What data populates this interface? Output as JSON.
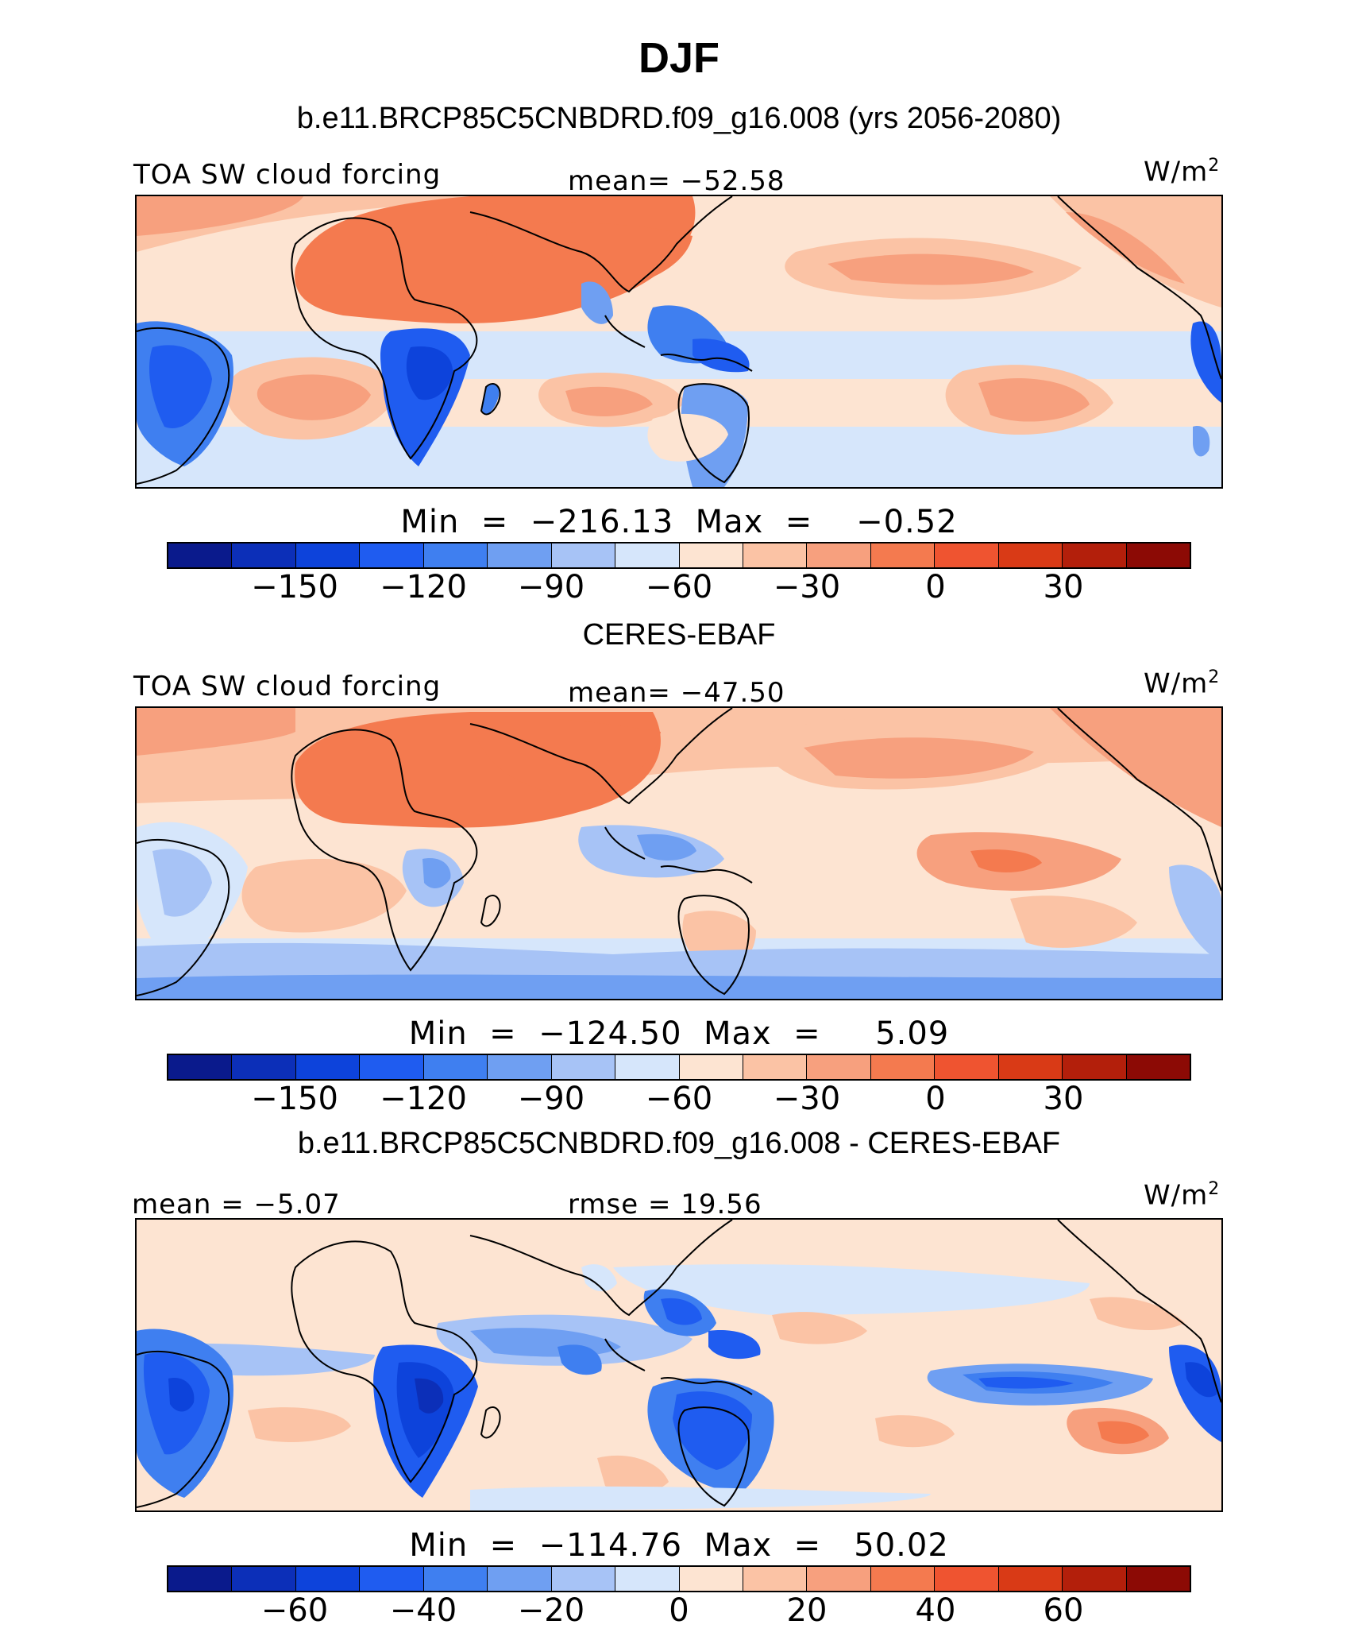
{
  "title": "DJF",
  "units": "W/m",
  "units_sup": "2",
  "colorbar_colors": [
    "#0a1a8c",
    "#0c2fb8",
    "#0d43db",
    "#1f5cf0",
    "#3f7ff0",
    "#6f9ff2",
    "#a7c3f6",
    "#d6e6fb",
    "#fde4d2",
    "#fbc3a5",
    "#f7a07e",
    "#f47a4f",
    "#ef5430",
    "#d93a16",
    "#b31f0b",
    "#8c0a05"
  ],
  "panels": [
    {
      "title": "b.e11.BRCP85C5CNBDRD.f09_g16.008 (yrs 2056-2080)",
      "left_label": "TOA SW cloud forcing",
      "center_label": "mean=  −52.58",
      "minmax": "Min  =  −216.13  Max  =    −0.52",
      "ticks": [
        "−150",
        "−120",
        "−90",
        "−60",
        "−30",
        "0",
        "30"
      ]
    },
    {
      "title": "CERES-EBAF",
      "left_label": "TOA SW cloud forcing",
      "center_label": "mean=  −47.50",
      "minmax": "Min  =  −124.50  Max  =     5.09",
      "ticks": [
        "−150",
        "−120",
        "−90",
        "−60",
        "−30",
        "0",
        "30"
      ]
    },
    {
      "title": "b.e11.BRCP85C5CNBDRD.f09_g16.008 - CERES-EBAF",
      "left_label": "mean =   −5.07",
      "center_label": "rmse =   19.56",
      "minmax": "Min  =  −114.76  Max  =   50.02",
      "ticks": [
        "−60",
        "−40",
        "−20",
        "0",
        "20",
        "40",
        "60"
      ]
    }
  ]
}
